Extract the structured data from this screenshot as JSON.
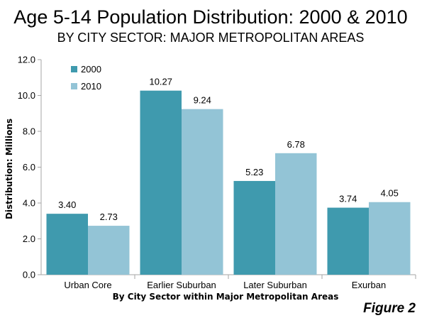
{
  "chart_data": {
    "type": "bar",
    "title": "Age 5-14 Population Distribution: 2000 & 2010",
    "subtitle": "BY CITY SECTOR: MAJOR METROPOLITAN AREAS",
    "xlabel": "By City Sector within Major Metropolitan Areas",
    "ylabel": "Distribution: Millions",
    "ylim": [
      0,
      12
    ],
    "yticks": [
      "0.0",
      "2.0",
      "4.0",
      "6.0",
      "8.0",
      "10.0",
      "12.0"
    ],
    "categories": [
      "Urban Core",
      "Earlier Suburban",
      "Later Suburban",
      "Exurban"
    ],
    "series": [
      {
        "name": "2000",
        "values": [
          3.4,
          10.27,
          5.23,
          3.74
        ],
        "labels": [
          "3.40",
          "10.27",
          "5.23",
          "3.74"
        ],
        "color": "#3f9aae"
      },
      {
        "name": "2010",
        "values": [
          2.73,
          9.24,
          6.78,
          4.05
        ],
        "labels": [
          "2.73",
          "9.24",
          "6.78",
          "4.05"
        ],
        "color": "#93c4d6"
      }
    ],
    "grid": false,
    "legend": "top-left"
  },
  "figure_label": "Figure 2",
  "colors": {
    "axis": "#a6a6a6"
  }
}
